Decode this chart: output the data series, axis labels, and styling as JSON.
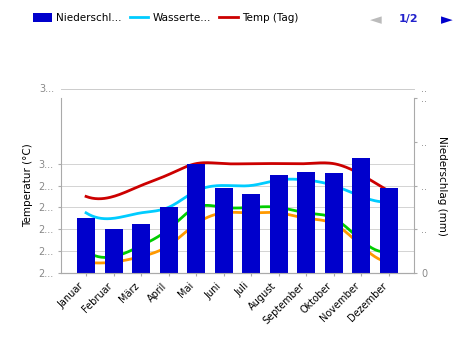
{
  "months": [
    "Januar",
    "Februar",
    "März",
    "April",
    "Mai",
    "Juni",
    "Juli",
    "August",
    "September",
    "Oktober",
    "November",
    "Dezember"
  ],
  "precipitation": [
    100,
    80,
    90,
    120,
    200,
    155,
    145,
    180,
    185,
    182,
    210,
    155
  ],
  "water_temp": [
    25.5,
    25.0,
    25.5,
    26.0,
    27.5,
    28.0,
    28.0,
    28.5,
    28.5,
    28.0,
    27.0,
    26.5
  ],
  "temp_day": [
    27.0,
    27.0,
    28.0,
    29.0,
    30.0,
    30.0,
    30.0,
    30.0,
    30.0,
    30.0,
    29.0,
    27.5
  ],
  "evaporation": [
    22.0,
    21.5,
    22.5,
    24.0,
    26.0,
    26.0,
    26.0,
    26.0,
    25.5,
    25.0,
    23.0,
    22.0
  ],
  "sunshine": [
    21.0,
    21.0,
    21.5,
    22.5,
    24.5,
    25.5,
    25.5,
    25.5,
    25.0,
    24.5,
    22.5,
    21.0
  ],
  "bar_color": "#0000cc",
  "water_temp_color": "#00ccff",
  "temp_day_color": "#cc0000",
  "evaporation_color": "#00cc00",
  "sunshine_color": "#ff9900",
  "ylabel_left": "Temperatur (°C)",
  "ylabel_right": "Niederschlag (mm)",
  "ylim_left": [
    20,
    36
  ],
  "ylim_right": [
    0,
    320
  ],
  "yticks_left": [
    20,
    22,
    24,
    26,
    28,
    30
  ],
  "ytick_labels_left": [
    "2...",
    "2...",
    "2...",
    "2...",
    "2...",
    "3..."
  ],
  "yticks_right": [
    0,
    80,
    160,
    240,
    320
  ],
  "ytick_labels_right": [
    "0",
    "..",
    "..",
    "..",
    ".."
  ],
  "legend_items": [
    "Niederschl...",
    "Wasserte...",
    "Temp (Tag)"
  ],
  "background_color": "#ffffff",
  "grid_color": "#cccccc",
  "top_label": "3...",
  "top_label_right": ".."
}
